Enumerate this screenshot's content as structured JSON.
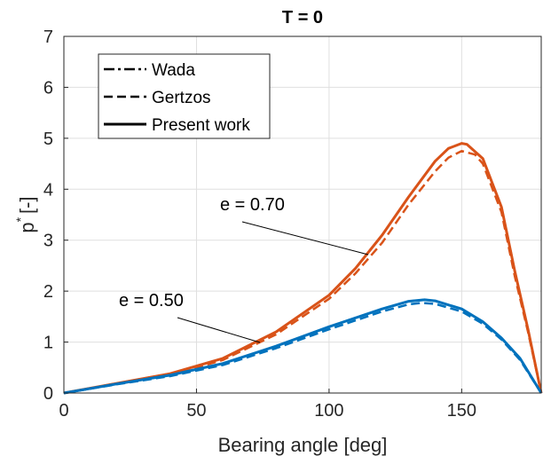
{
  "chart_data": {
    "type": "line",
    "title": "T = 0",
    "xlabel": "Bearing angle [deg]",
    "ylabel_main": "p",
    "ylabel_sup": "*",
    "ylabel_unit": "[-]",
    "xlim": [
      0,
      180
    ],
    "ylim": [
      0,
      7
    ],
    "xticks": [
      0,
      50,
      100,
      150
    ],
    "yticks": [
      0,
      1,
      2,
      3,
      4,
      5,
      6,
      7
    ],
    "grid": true,
    "legend_position": "top-left",
    "legend": [
      {
        "label": "Wada",
        "style": "dashdot"
      },
      {
        "label": "Gertzos",
        "style": "dashed"
      },
      {
        "label": "Present work",
        "style": "solid"
      }
    ],
    "annotations": [
      {
        "text": "e = 0.70",
        "x": 115,
        "y": 2.75
      },
      {
        "text": "e = 0.50",
        "x": 77,
        "y": 0.95
      }
    ],
    "colors": {
      "e070": "#D95319",
      "e050": "#0072BD",
      "axes": "#262626",
      "grid": "#DFDFDF"
    },
    "series": [
      {
        "group": "e070",
        "style": "dashed",
        "x": [
          0,
          20,
          40,
          60,
          80,
          100,
          110,
          120,
          130,
          140,
          145,
          150,
          155,
          158,
          165,
          170,
          175,
          180
        ],
        "y": [
          0,
          0.18,
          0.35,
          0.65,
          1.15,
          1.85,
          2.35,
          2.95,
          3.7,
          4.35,
          4.62,
          4.75,
          4.68,
          4.5,
          3.55,
          2.3,
          1.2,
          0
        ]
      },
      {
        "group": "e070",
        "style": "dashdot",
        "x": [
          0,
          20,
          40,
          60,
          80,
          100,
          110,
          120,
          130,
          140,
          145,
          150,
          152,
          158,
          165,
          170,
          175,
          180
        ],
        "y": [
          0,
          0.19,
          0.38,
          0.68,
          1.2,
          1.92,
          2.45,
          3.1,
          3.85,
          4.55,
          4.8,
          4.9,
          4.88,
          4.6,
          3.65,
          2.4,
          1.25,
          0
        ]
      },
      {
        "group": "e070",
        "style": "solid",
        "x": [
          0,
          20,
          40,
          60,
          80,
          100,
          110,
          120,
          130,
          140,
          145,
          150,
          152,
          158,
          165,
          170,
          175,
          180
        ],
        "y": [
          0,
          0.19,
          0.38,
          0.68,
          1.2,
          1.92,
          2.45,
          3.1,
          3.85,
          4.55,
          4.8,
          4.9,
          4.88,
          4.6,
          3.65,
          2.4,
          1.25,
          0
        ]
      },
      {
        "group": "e050",
        "style": "dashed",
        "x": [
          0,
          20,
          40,
          60,
          80,
          100,
          120,
          130,
          135,
          140,
          150,
          158,
          165,
          172,
          180
        ],
        "y": [
          0,
          0.17,
          0.33,
          0.55,
          0.88,
          1.25,
          1.6,
          1.74,
          1.77,
          1.75,
          1.6,
          1.36,
          1.05,
          0.65,
          0
        ]
      },
      {
        "group": "e050",
        "style": "dashdot",
        "x": [
          0,
          20,
          40,
          60,
          80,
          100,
          120,
          130,
          136,
          140,
          150,
          158,
          165,
          172,
          180
        ],
        "y": [
          0,
          0.18,
          0.35,
          0.58,
          0.92,
          1.3,
          1.65,
          1.8,
          1.83,
          1.81,
          1.65,
          1.4,
          1.08,
          0.68,
          0
        ]
      },
      {
        "group": "e050",
        "style": "solid",
        "x": [
          0,
          20,
          40,
          60,
          80,
          100,
          120,
          130,
          136,
          140,
          150,
          158,
          165,
          172,
          180
        ],
        "y": [
          0,
          0.18,
          0.35,
          0.58,
          0.92,
          1.3,
          1.65,
          1.8,
          1.83,
          1.81,
          1.65,
          1.4,
          1.08,
          0.68,
          0
        ]
      }
    ]
  }
}
